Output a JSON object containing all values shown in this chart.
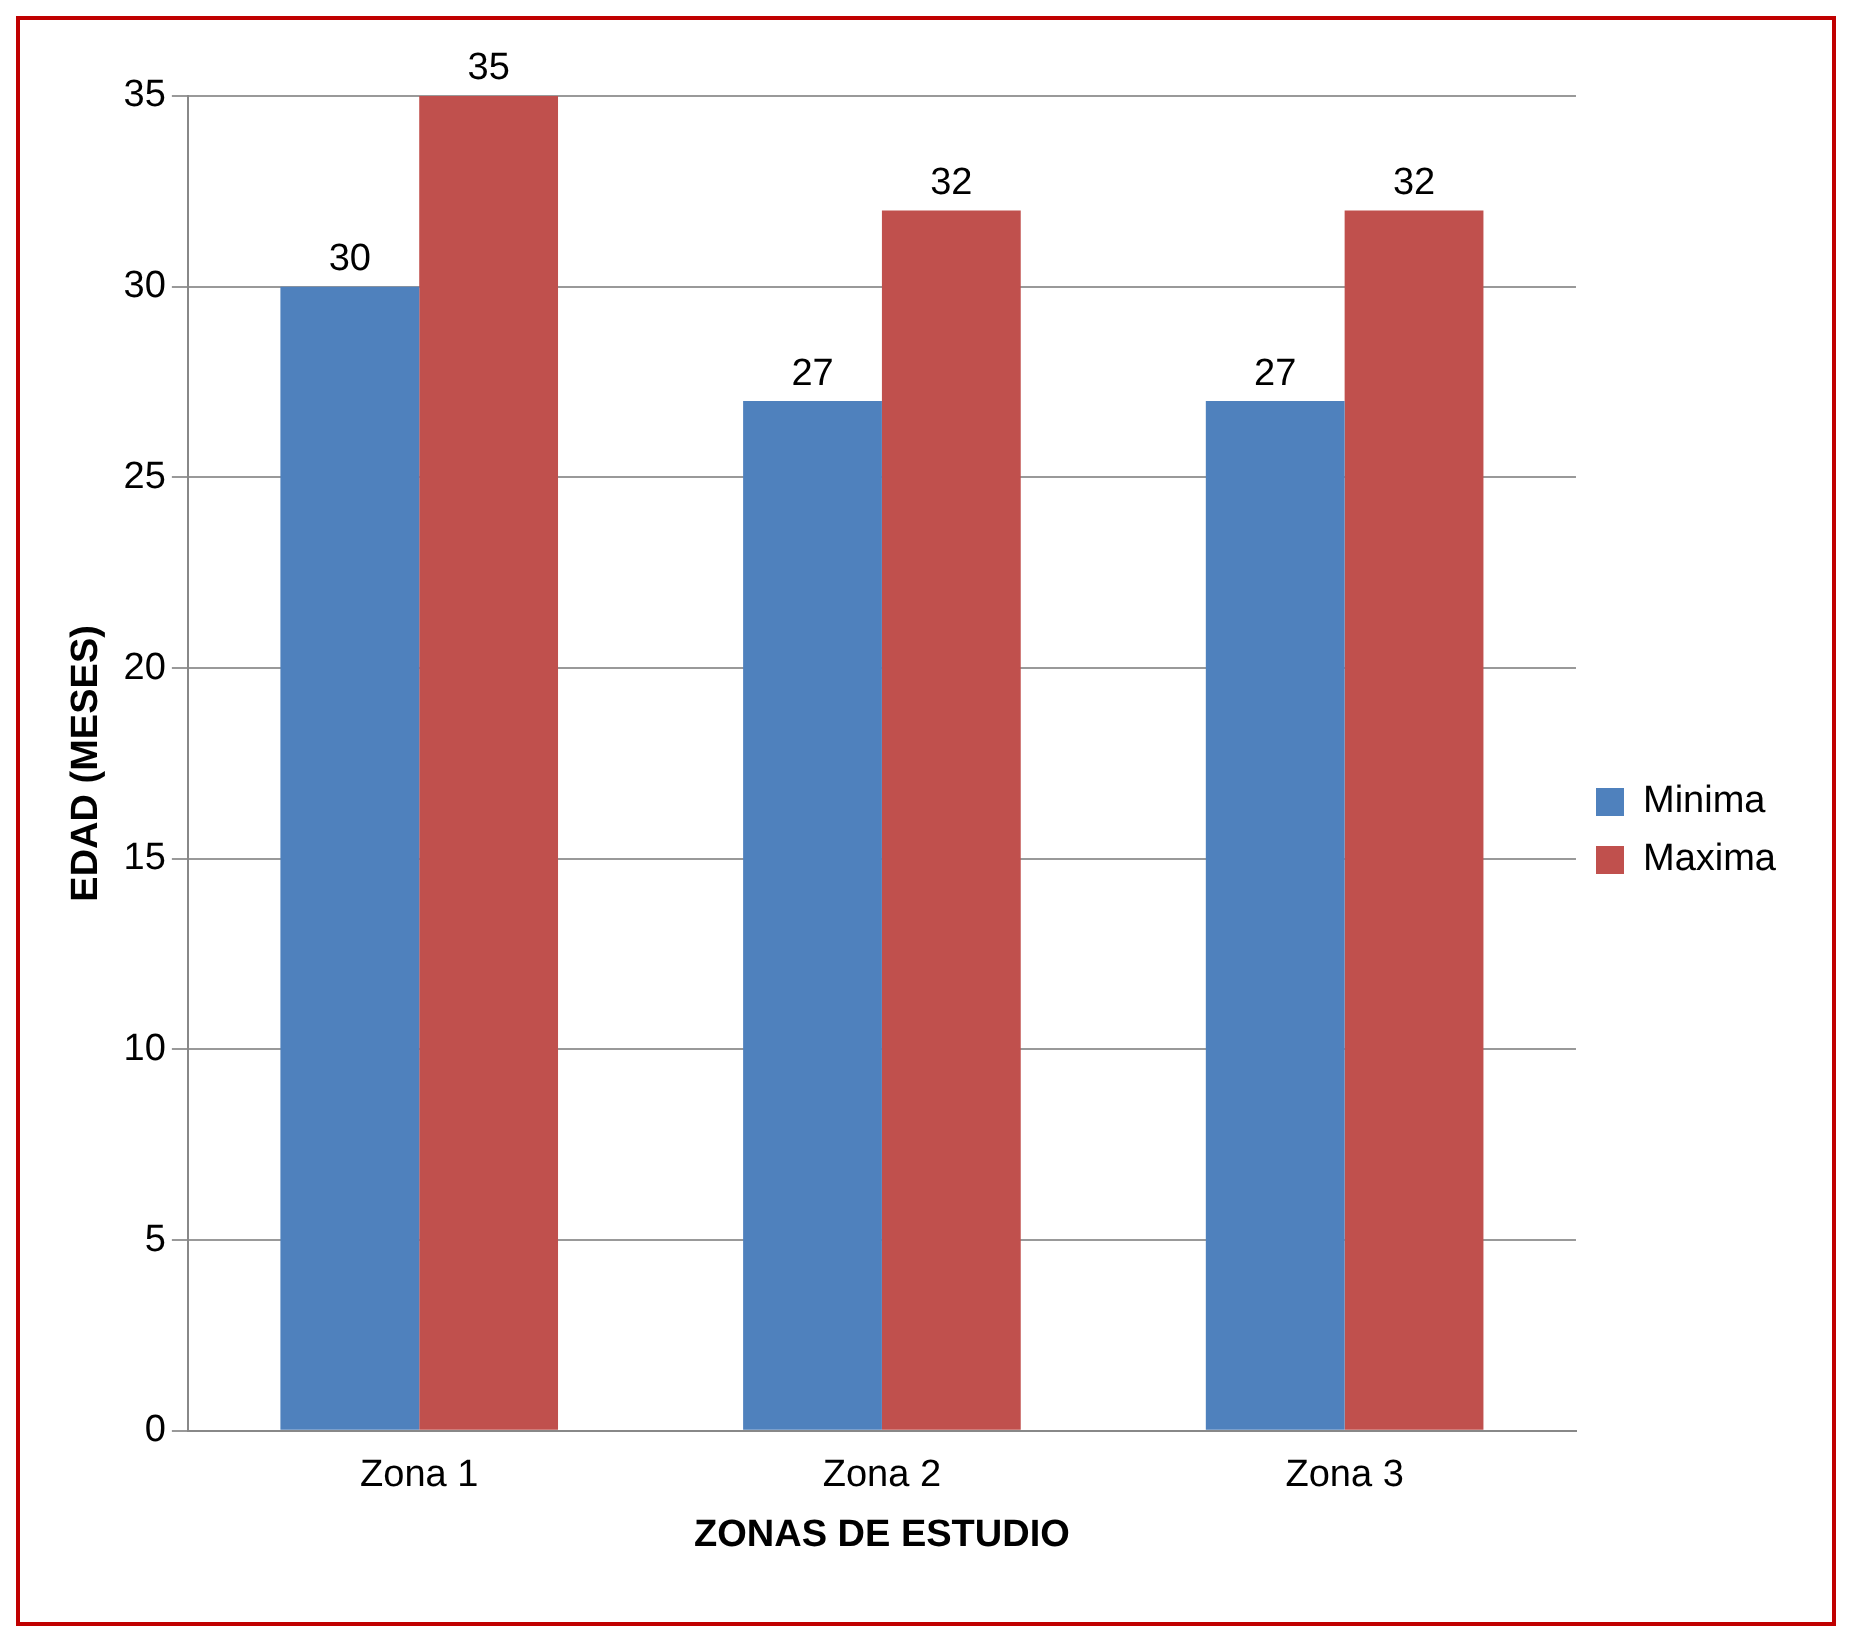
{
  "chart_data": {
    "type": "bar",
    "xlabel": "ZONAS DE ESTUDIO",
    "ylabel": "EDAD (MESES)",
    "categories": [
      "Zona 1",
      "Zona 2",
      "Zona 3"
    ],
    "series": [
      {
        "name": "Minima",
        "color": "#4f81bd",
        "values": [
          30,
          27,
          27
        ]
      },
      {
        "name": "Maxima",
        "color": "#c0504d",
        "values": [
          35,
          32,
          32
        ]
      }
    ],
    "ylim": [
      0,
      35
    ],
    "yticks": [
      0,
      5,
      10,
      15,
      20,
      25,
      30,
      35
    ],
    "grid": "y",
    "legend": "right",
    "data_labels": true
  }
}
